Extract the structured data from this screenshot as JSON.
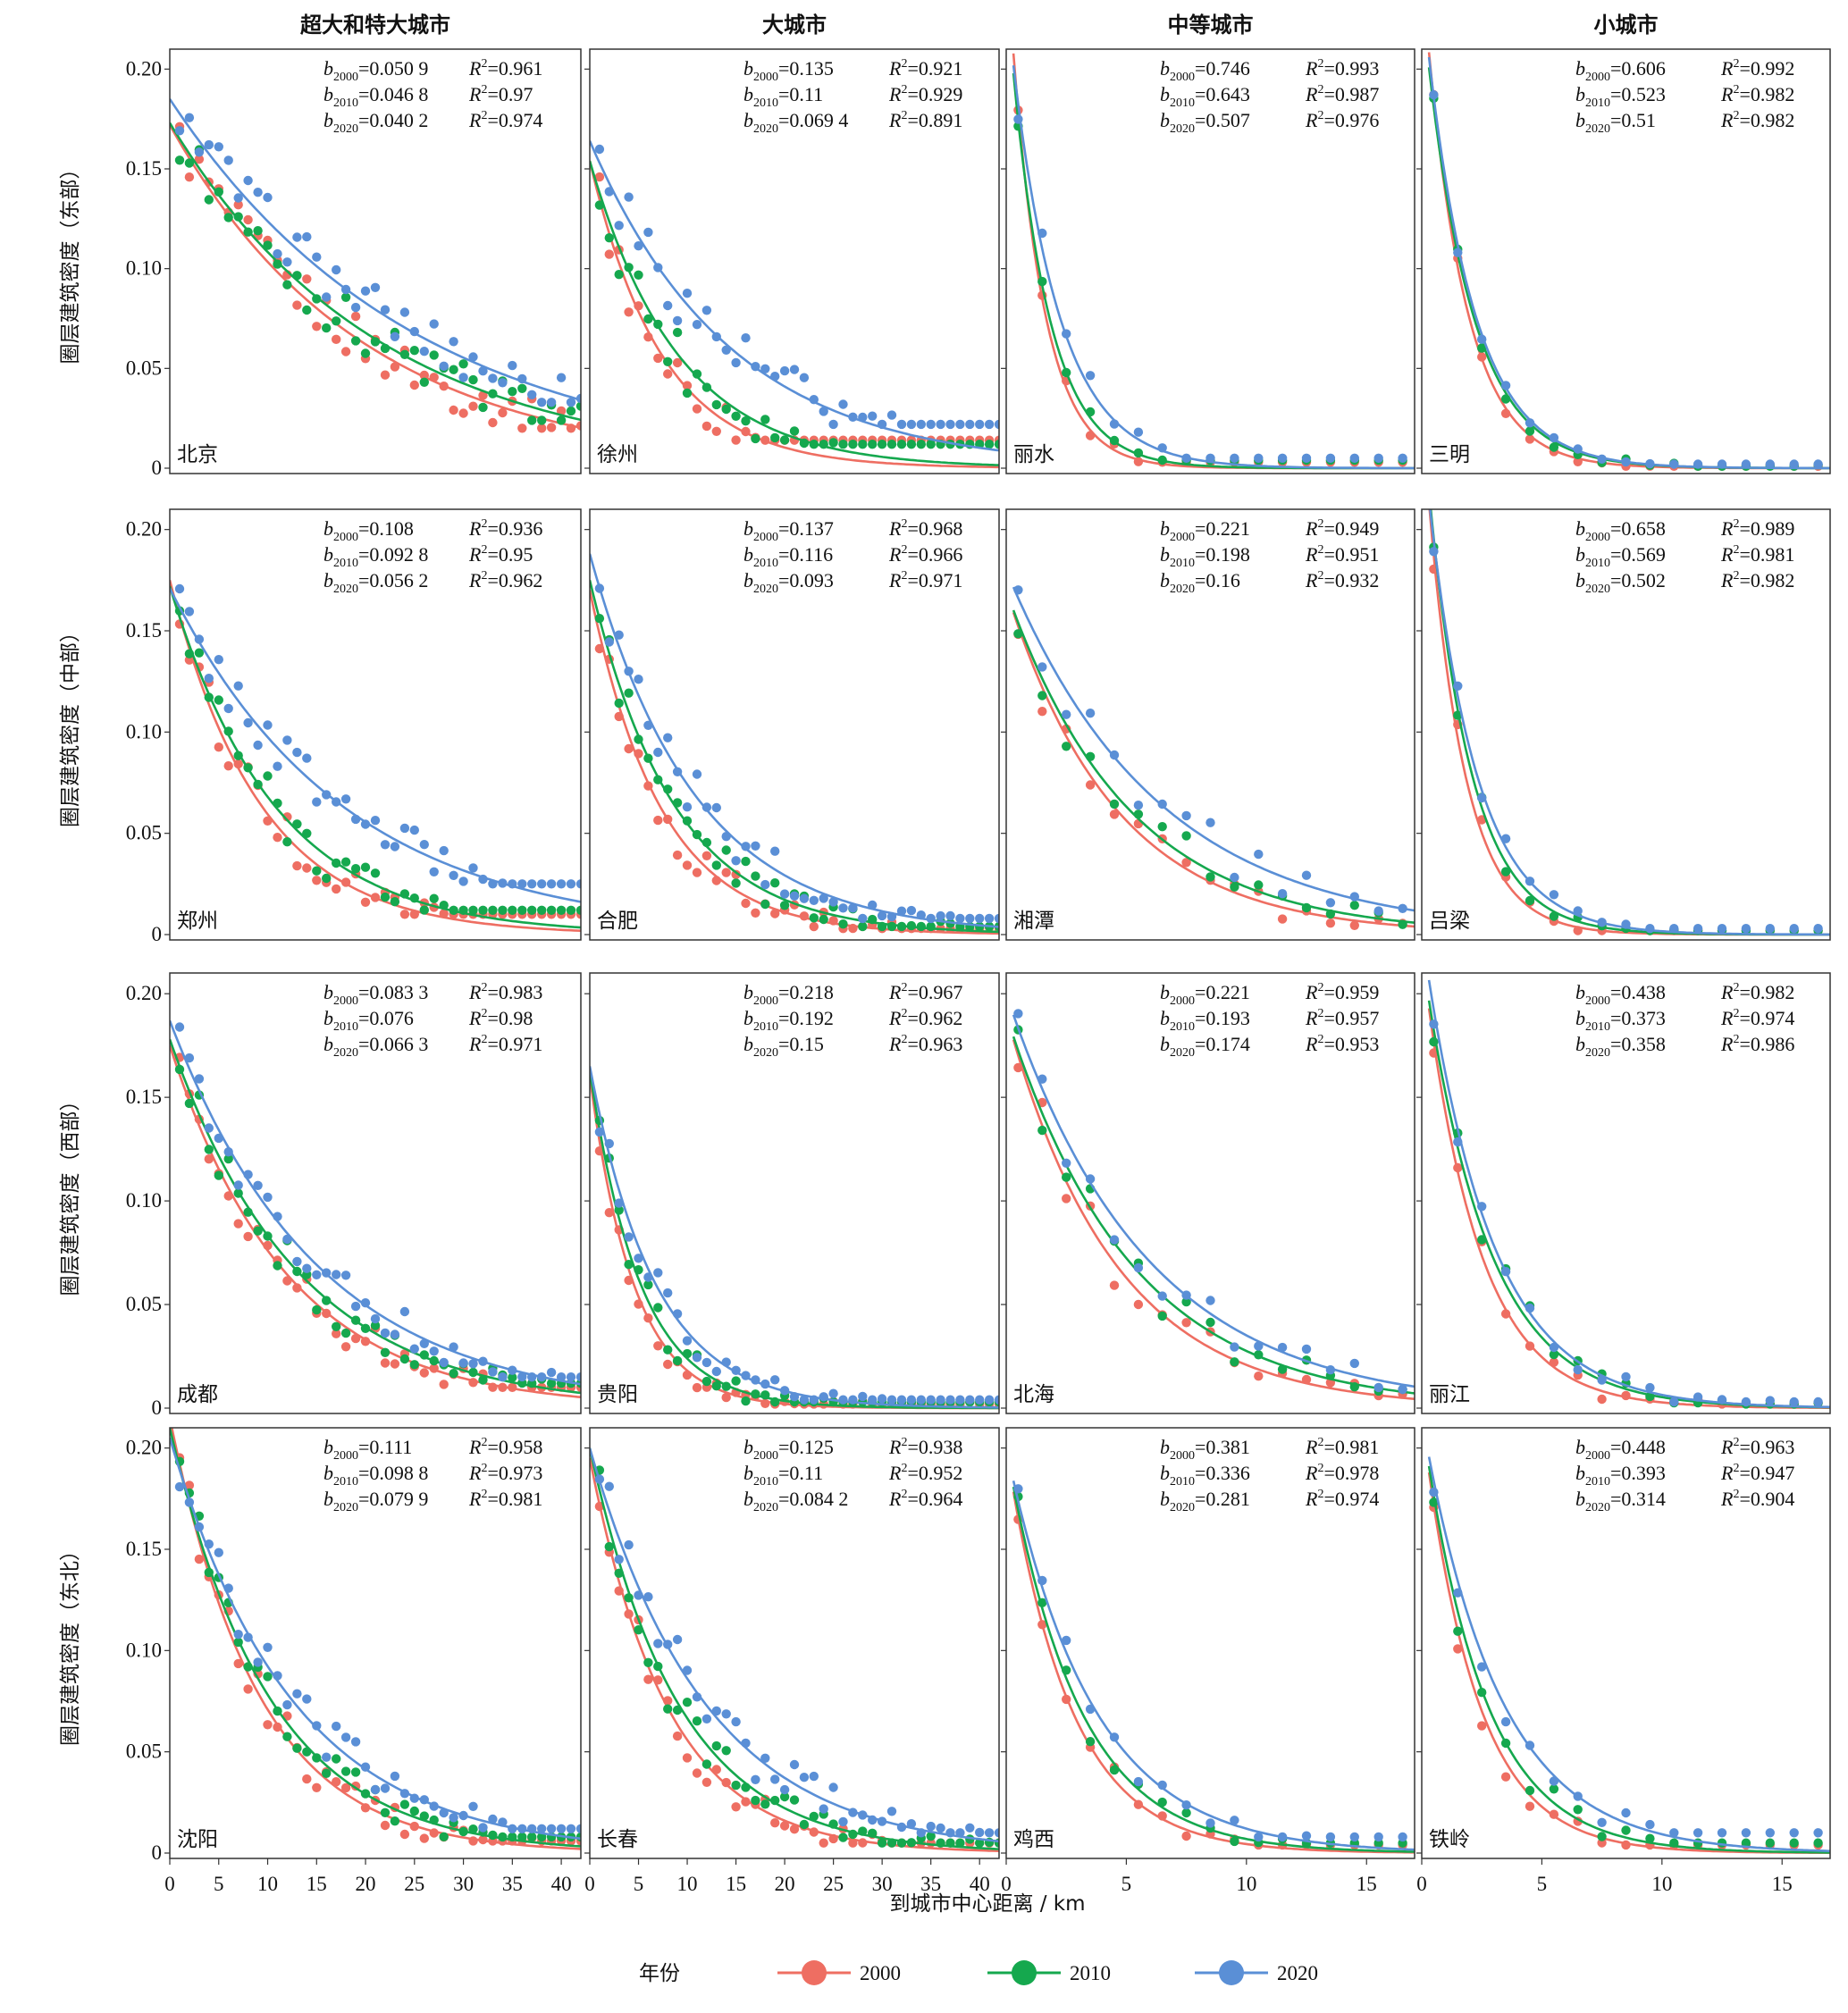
{
  "chart_data": {
    "type": "scatter",
    "xlabel": "到城市中心距离 / km",
    "legend": {
      "title": "年份",
      "placement": "bottom",
      "entries": [
        {
          "name": "2000",
          "color": "#ee6e62"
        },
        {
          "name": "2010",
          "color": "#15a84e"
        },
        {
          "name": "2020",
          "color": "#5a8fd6"
        }
      ]
    },
    "columns": [
      {
        "title": "超大和特大城市",
        "xlim": [
          0,
          42
        ],
        "xticks": [
          0,
          5,
          10,
          15,
          20,
          25,
          30,
          35,
          40
        ]
      },
      {
        "title": "大城市",
        "xlim": [
          0,
          42
        ],
        "xticks": [
          0,
          5,
          10,
          15,
          20,
          25,
          30,
          35,
          40
        ]
      },
      {
        "title": "中等城市",
        "xlim": [
          0,
          17
        ],
        "xticks": [
          0,
          5,
          10,
          15
        ]
      },
      {
        "title": "小城市",
        "xlim": [
          0,
          17
        ],
        "xticks": [
          0,
          5,
          10,
          15
        ]
      }
    ],
    "rows": [
      {
        "title": "圈层建筑密度（东部）"
      },
      {
        "title": "圈层建筑密度（中部）"
      },
      {
        "title": "圈层建筑密度（西部）"
      },
      {
        "title": "圈层建筑密度（东北）"
      }
    ],
    "ylim": [
      0,
      0.2
    ],
    "yticks": [
      {
        "v": 0,
        "label": "0"
      },
      {
        "v": 0.05,
        "label": "0.05"
      },
      {
        "v": 0.1,
        "label": "0.10"
      },
      {
        "v": 0.15,
        "label": "0.15"
      },
      {
        "v": 0.2,
        "label": "0.20"
      }
    ],
    "panels": [
      {
        "city": "北京",
        "a": [
          0.172,
          0.173,
          0.185
        ],
        "b": [
          0.0509,
          0.0468,
          0.0402
        ],
        "b_text": [
          "0.050 9",
          "0.046 8",
          "0.040 2"
        ],
        "r2": [
          "0.961",
          "0.97",
          "0.974"
        ],
        "noise": 0.012,
        "floor": [
          0.02,
          0.024,
          0.033
        ]
      },
      {
        "city": "徐州",
        "a": [
          0.154,
          0.154,
          0.164
        ],
        "b": [
          0.135,
          0.11,
          0.0694
        ],
        "b_text": [
          "0.135",
          "0.11",
          "0.069 4"
        ],
        "r2": [
          "0.921",
          "0.929",
          "0.891"
        ],
        "noise": 0.014,
        "floor": [
          0.014,
          0.012,
          0.022
        ]
      },
      {
        "city": "丽水",
        "a": [
          0.26,
          0.24,
          0.235
        ],
        "b": [
          0.746,
          0.643,
          0.507
        ],
        "b_text": [
          "0.746",
          "0.643",
          "0.507"
        ],
        "r2": [
          "0.993",
          "0.987",
          "0.976"
        ],
        "noise": 0.008,
        "floor": [
          0.003,
          0.004,
          0.005
        ]
      },
      {
        "city": "三明",
        "a": [
          0.25,
          0.235,
          0.24
        ],
        "b": [
          0.606,
          0.523,
          0.51
        ],
        "b_text": [
          "0.606",
          "0.523",
          "0.51"
        ],
        "r2": [
          "0.992",
          "0.982",
          "0.982"
        ],
        "noise": 0.006,
        "floor": [
          0.001,
          0.001,
          0.002
        ]
      },
      {
        "city": "郑州",
        "a": [
          0.175,
          0.172,
          0.171
        ],
        "b": [
          0.108,
          0.0928,
          0.0562
        ],
        "b_text": [
          "0.108",
          "0.092 8",
          "0.056 2"
        ],
        "r2": [
          "0.936",
          "0.95",
          "0.962"
        ],
        "noise": 0.012,
        "floor": [
          0.01,
          0.012,
          0.025
        ]
      },
      {
        "city": "合肥",
        "a": [
          0.17,
          0.175,
          0.188
        ],
        "b": [
          0.137,
          0.116,
          0.093
        ],
        "b_text": [
          "0.137",
          "0.116",
          "0.093"
        ],
        "r2": [
          "0.968",
          "0.966",
          "0.971"
        ],
        "noise": 0.012,
        "floor": [
          0.003,
          0.004,
          0.008
        ]
      },
      {
        "city": "湘潭",
        "a": [
          0.17,
          0.17,
          0.18
        ],
        "b": [
          0.221,
          0.198,
          0.16
        ],
        "b_text": [
          "0.221",
          "0.198",
          "0.16"
        ],
        "r2": [
          "0.949",
          "0.951",
          "0.932"
        ],
        "noise": 0.012,
        "floor": [
          0.004,
          0.005,
          0.008
        ]
      },
      {
        "city": "吕梁",
        "a": [
          0.26,
          0.26,
          0.25
        ],
        "b": [
          0.658,
          0.569,
          0.502
        ],
        "b_text": [
          "0.658",
          "0.569",
          "0.502"
        ],
        "r2": [
          "0.989",
          "0.981",
          "0.982"
        ],
        "noise": 0.007,
        "floor": [
          0.002,
          0.002,
          0.003
        ]
      },
      {
        "city": "成都",
        "a": [
          0.175,
          0.178,
          0.187
        ],
        "b": [
          0.0833,
          0.076,
          0.0663
        ],
        "b_text": [
          "0.083 3",
          "0.076",
          "0.066 3"
        ],
        "r2": [
          "0.983",
          "0.98",
          "0.971"
        ],
        "noise": 0.01,
        "floor": [
          0.01,
          0.012,
          0.015
        ]
      },
      {
        "city": "贵阳",
        "a": [
          0.16,
          0.163,
          0.165
        ],
        "b": [
          0.218,
          0.192,
          0.15
        ],
        "b_text": [
          "0.218",
          "0.192",
          "0.15"
        ],
        "r2": [
          "0.967",
          "0.962",
          "0.963"
        ],
        "noise": 0.01,
        "floor": [
          0.002,
          0.003,
          0.004
        ]
      },
      {
        "city": "北海",
        "a": [
          0.19,
          0.19,
          0.2
        ],
        "b": [
          0.221,
          0.193,
          0.174
        ],
        "b_text": [
          "0.221",
          "0.193",
          "0.174"
        ],
        "r2": [
          "0.959",
          "0.957",
          "0.953"
        ],
        "noise": 0.012,
        "floor": [
          0.006,
          0.007,
          0.009
        ]
      },
      {
        "city": "丽江",
        "a": [
          0.22,
          0.22,
          0.23
        ],
        "b": [
          0.438,
          0.373,
          0.358
        ],
        "b_text": [
          "0.438",
          "0.373",
          "0.358"
        ],
        "r2": [
          "0.982",
          "0.974",
          "0.986"
        ],
        "noise": 0.009,
        "floor": [
          0.002,
          0.002,
          0.003
        ]
      },
      {
        "city": "沈阳",
        "a": [
          0.215,
          0.21,
          0.205
        ],
        "b": [
          0.111,
          0.0988,
          0.0799
        ],
        "b_text": [
          "0.111",
          "0.098 8",
          "0.079 9"
        ],
        "r2": [
          "0.958",
          "0.973",
          "0.981"
        ],
        "noise": 0.011,
        "floor": [
          0.006,
          0.008,
          0.012
        ]
      },
      {
        "city": "长春",
        "a": [
          0.195,
          0.2,
          0.2
        ],
        "b": [
          0.125,
          0.11,
          0.0842
        ],
        "b_text": [
          "0.125",
          "0.11",
          "0.084 2"
        ],
        "r2": [
          "0.938",
          "0.952",
          "0.964"
        ],
        "noise": 0.012,
        "floor": [
          0.005,
          0.005,
          0.01
        ]
      },
      {
        "city": "鸡西",
        "a": [
          0.2,
          0.2,
          0.2
        ],
        "b": [
          0.381,
          0.336,
          0.281
        ],
        "b_text": [
          "0.381",
          "0.336",
          "0.281"
        ],
        "r2": [
          "0.981",
          "0.978",
          "0.974"
        ],
        "noise": 0.008,
        "floor": [
          0.004,
          0.005,
          0.008
        ]
      },
      {
        "city": "铁岭",
        "a": [
          0.215,
          0.215,
          0.215
        ],
        "b": [
          0.448,
          0.393,
          0.314
        ],
        "b_text": [
          "0.448",
          "0.393",
          "0.314"
        ],
        "r2": [
          "0.963",
          "0.947",
          "0.904"
        ],
        "noise": 0.01,
        "floor": [
          0.004,
          0.005,
          0.01
        ]
      }
    ]
  }
}
